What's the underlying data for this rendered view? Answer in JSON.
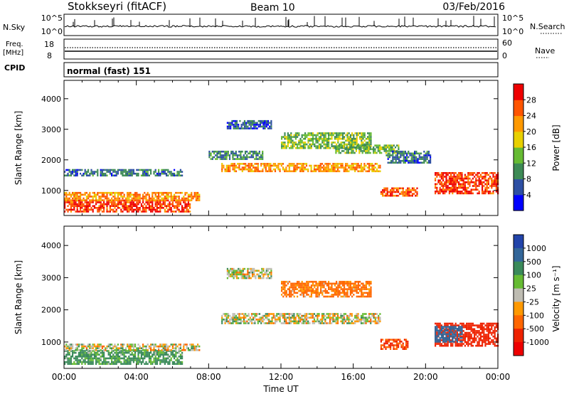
{
  "header": {
    "station": "Stokkseyri (fitACF)",
    "beam": "Beam 10",
    "date": "03/Feb/2016"
  },
  "rows": {
    "nsky": {
      "label": "N.Sky",
      "left_ticks": [
        "10^5",
        "10^0"
      ],
      "right_ticks": [
        "10^5",
        "10^0"
      ],
      "right_label": "N.Search"
    },
    "freq": {
      "label_line1": "Freq.",
      "label_line2": "[MHz]",
      "left_ticks": [
        "18",
        "8"
      ],
      "right_ticks": [
        "60",
        "0"
      ],
      "right_label": "Nave"
    },
    "cpid": {
      "label": "CPID",
      "value": "normal (fast) 151"
    }
  },
  "axes": {
    "ylabel": "Slant Range [km]",
    "yticks": [
      "4000",
      "3000",
      "2000",
      "1000"
    ],
    "xlabel": "Time UT",
    "xticks": [
      "00:00",
      "04:00",
      "08:00",
      "12:00",
      "16:00",
      "20:00",
      "00:00"
    ]
  },
  "colorbars": {
    "power": {
      "label": "Power [dB]",
      "ticks": [
        "28",
        "24",
        "20",
        "16",
        "12",
        "8",
        "4"
      ],
      "colors": [
        "#0000ff",
        "#2d4fa3",
        "#3d8a55",
        "#66bb33",
        "#e8d000",
        "#ff9900",
        "#ff5500",
        "#ee0000"
      ]
    },
    "velocity": {
      "label": "Velocity [m s⁻¹]",
      "ticks": [
        "1000",
        "500",
        "100",
        "25",
        "-25",
        "-100",
        "-500",
        "-1000"
      ],
      "colors": [
        "#2244aa",
        "#336699",
        "#3a8a5a",
        "#66bb33",
        "#bebcb2",
        "#ff9900",
        "#ff6600",
        "#ee2200",
        "#ee0000"
      ]
    }
  },
  "chart_data": [
    {
      "type": "heatmap",
      "title": "Power",
      "xlabel": "Time UT",
      "ylabel": "Slant Range [km]",
      "xlim": [
        "00:00",
        "24:00"
      ],
      "ylim": [
        180,
        4600
      ],
      "colorbar_label": "Power [dB]",
      "colorbar_range": [
        0,
        32
      ],
      "regions": [
        {
          "t0": 0.0,
          "t1": 7.0,
          "r0": 300,
          "r1": 700,
          "value": 28
        },
        {
          "t0": 0.0,
          "t1": 7.5,
          "r0": 650,
          "r1": 950,
          "value": 23
        },
        {
          "t0": 0.0,
          "t1": 6.5,
          "r0": 1500,
          "r1": 1700,
          "value": 8
        },
        {
          "t0": 8.7,
          "t1": 17.5,
          "r0": 1600,
          "r1": 1900,
          "value": 22
        },
        {
          "t0": 8.0,
          "t1": 11.0,
          "r0": 2000,
          "r1": 2300,
          "value": 10
        },
        {
          "t0": 12.0,
          "t1": 17.0,
          "r0": 2400,
          "r1": 2900,
          "value": 14
        },
        {
          "t0": 15.0,
          "t1": 18.5,
          "r0": 2200,
          "r1": 2500,
          "value": 13
        },
        {
          "t0": 17.5,
          "t1": 19.5,
          "r0": 800,
          "r1": 1100,
          "value": 26
        },
        {
          "t0": 17.8,
          "t1": 20.3,
          "r0": 1900,
          "r1": 2300,
          "value": 8
        },
        {
          "t0": 20.5,
          "t1": 24.0,
          "r0": 900,
          "r1": 1600,
          "value": 28
        },
        {
          "t0": 9.0,
          "t1": 11.5,
          "r0": 3000,
          "r1": 3300,
          "value": 6
        }
      ]
    },
    {
      "type": "heatmap",
      "title": "Velocity",
      "xlabel": "Time UT",
      "ylabel": "Slant Range [km]",
      "xlim": [
        "00:00",
        "24:00"
      ],
      "ylim": [
        180,
        4600
      ],
      "colorbar_label": "Velocity [m s⁻¹]",
      "colorbar_range": [
        -1000,
        1000
      ],
      "regions": [
        {
          "t0": 0.0,
          "t1": 6.5,
          "r0": 300,
          "r1": 750,
          "value": 100
        },
        {
          "t0": 0.0,
          "t1": 7.5,
          "r0": 750,
          "r1": 950,
          "value": 0
        },
        {
          "t0": 8.7,
          "t1": 17.5,
          "r0": 1600,
          "r1": 1900,
          "value": 0
        },
        {
          "t0": 9.0,
          "t1": 11.5,
          "r0": 3000,
          "r1": 3300,
          "value": 0
        },
        {
          "t0": 12.0,
          "t1": 17.0,
          "r0": 2400,
          "r1": 2900,
          "value": -100
        },
        {
          "t0": 17.5,
          "t1": 19.0,
          "r0": 800,
          "r1": 1100,
          "value": -300
        },
        {
          "t0": 20.5,
          "t1": 24.0,
          "r0": 900,
          "r1": 1600,
          "value": -400
        },
        {
          "t0": 20.5,
          "t1": 22.0,
          "r0": 1000,
          "r1": 1500,
          "value": 600
        }
      ]
    }
  ]
}
